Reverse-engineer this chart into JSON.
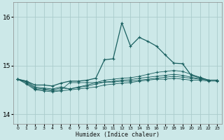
{
  "xlabel": "Humidex (Indice chaleur)",
  "background_color": "#cce8e8",
  "grid_color": "#aacccc",
  "line_color": "#1a6060",
  "xlim": [
    -0.5,
    23.5
  ],
  "ylim": [
    13.8,
    16.3
  ],
  "yticks": [
    14,
    15,
    16
  ],
  "xtick_labels": [
    "0",
    "1",
    "2",
    "3",
    "4",
    "5",
    "6",
    "7",
    "8",
    "9",
    "10",
    "11",
    "12",
    "13",
    "14",
    "15",
    "16",
    "17",
    "18",
    "19",
    "20",
    "21",
    "22",
    "23"
  ],
  "series1": [
    14.72,
    14.68,
    14.6,
    14.6,
    14.58,
    14.64,
    14.68,
    14.68,
    14.7,
    14.74,
    15.12,
    15.14,
    15.88,
    15.4,
    15.58,
    15.5,
    15.4,
    15.22,
    15.05,
    15.04,
    14.8,
    14.75,
    14.7,
    14.7
  ],
  "series2": [
    14.72,
    14.68,
    14.56,
    14.54,
    14.52,
    14.56,
    14.52,
    14.56,
    14.6,
    14.65,
    14.7,
    14.72,
    14.74,
    14.75,
    14.78,
    14.82,
    14.86,
    14.88,
    14.9,
    14.88,
    14.82,
    14.76,
    14.7,
    14.7
  ],
  "series3": [
    14.72,
    14.66,
    14.54,
    14.52,
    14.5,
    14.54,
    14.52,
    14.55,
    14.58,
    14.62,
    14.66,
    14.68,
    14.7,
    14.71,
    14.74,
    14.76,
    14.78,
    14.8,
    14.82,
    14.8,
    14.76,
    14.73,
    14.7,
    14.7
  ],
  "series4": [
    14.72,
    14.64,
    14.52,
    14.5,
    14.48,
    14.5,
    14.65,
    14.65,
    14.65,
    14.65,
    14.66,
    14.66,
    14.68,
    14.68,
    14.7,
    14.72,
    14.74,
    14.76,
    14.78,
    14.76,
    14.74,
    14.72,
    14.7,
    14.7
  ],
  "series5": [
    14.72,
    14.62,
    14.5,
    14.48,
    14.46,
    14.48,
    14.5,
    14.52,
    14.54,
    14.56,
    14.6,
    14.62,
    14.64,
    14.65,
    14.68,
    14.7,
    14.72,
    14.72,
    14.74,
    14.72,
    14.7,
    14.7,
    14.68,
    14.68
  ]
}
